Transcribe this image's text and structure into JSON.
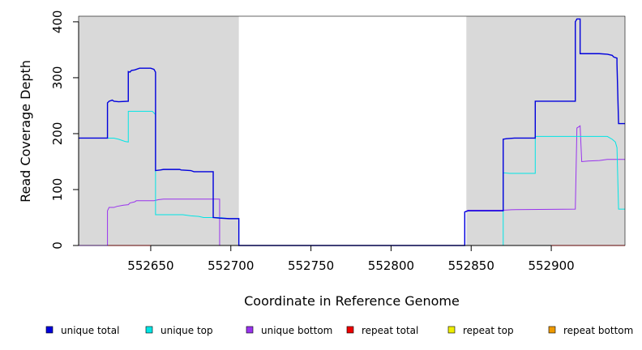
{
  "chart_data": {
    "type": "line",
    "title": "",
    "xlabel": "Coordinate in Reference Genome",
    "ylabel": "Read Coverage Depth",
    "xlim": [
      552605,
      552946
    ],
    "ylim": [
      0,
      410
    ],
    "x_ticks": [
      552650,
      552700,
      552750,
      552800,
      552850,
      552900
    ],
    "y_ticks": [
      0,
      100,
      200,
      300,
      400
    ],
    "grid": false,
    "legend_position": "bottom",
    "shaded_regions": [
      {
        "x_start": 552605,
        "x_end": 552705,
        "color": "#d9d9d9"
      },
      {
        "x_start": 552847,
        "x_end": 552946,
        "color": "#d9d9d9"
      }
    ],
    "series": [
      {
        "name": "unique total",
        "color": "#0000dd",
        "points": [
          [
            552605,
            192
          ],
          [
            552623,
            192
          ],
          [
            552623,
            255
          ],
          [
            552624,
            258
          ],
          [
            552626,
            260
          ],
          [
            552627,
            258
          ],
          [
            552630,
            257
          ],
          [
            552636,
            258
          ],
          [
            552636,
            311
          ],
          [
            552637,
            310
          ],
          [
            552638,
            313
          ],
          [
            552640,
            314
          ],
          [
            552643,
            317
          ],
          [
            552650,
            317
          ],
          [
            552652,
            315
          ],
          [
            552653,
            310
          ],
          [
            552653,
            134
          ],
          [
            552656,
            135
          ],
          [
            552658,
            136
          ],
          [
            552668,
            136
          ],
          [
            552669,
            135
          ],
          [
            552675,
            134
          ],
          [
            552677,
            132
          ],
          [
            552689,
            132
          ],
          [
            552689,
            50
          ],
          [
            552693,
            49
          ],
          [
            552699,
            48
          ],
          [
            552705,
            48
          ],
          [
            552705,
            0
          ],
          [
            552846,
            0
          ],
          [
            552846,
            60
          ],
          [
            552848,
            62
          ],
          [
            552870,
            62
          ],
          [
            552870,
            190
          ],
          [
            552872,
            191
          ],
          [
            552877,
            192
          ],
          [
            552890,
            192
          ],
          [
            552890,
            258
          ],
          [
            552915,
            258
          ],
          [
            552915,
            400
          ],
          [
            552916,
            405
          ],
          [
            552918,
            405
          ],
          [
            552918,
            343
          ],
          [
            552930,
            343
          ],
          [
            552935,
            342
          ],
          [
            552938,
            340
          ],
          [
            552939,
            337
          ],
          [
            552941,
            335
          ],
          [
            552941,
            325
          ],
          [
            552942,
            218
          ],
          [
            552946,
            218
          ]
        ]
      },
      {
        "name": "unique top",
        "color": "#00e5e5",
        "points": [
          [
            552605,
            192
          ],
          [
            552627,
            192
          ],
          [
            552630,
            190
          ],
          [
            552634,
            186
          ],
          [
            552636,
            185
          ],
          [
            552636,
            240
          ],
          [
            552651,
            240
          ],
          [
            552653,
            234
          ],
          [
            552653,
            55
          ],
          [
            552670,
            55
          ],
          [
            552675,
            53
          ],
          [
            552680,
            52
          ],
          [
            552683,
            50
          ],
          [
            552693,
            50
          ],
          [
            552699,
            48
          ],
          [
            552705,
            48
          ],
          [
            552705,
            0
          ],
          [
            552870,
            0
          ],
          [
            552870,
            130
          ],
          [
            552874,
            129
          ],
          [
            552883,
            129
          ],
          [
            552890,
            129
          ],
          [
            552890,
            195
          ],
          [
            552935,
            195
          ],
          [
            552938,
            190
          ],
          [
            552940,
            185
          ],
          [
            552941,
            175
          ],
          [
            552942,
            65
          ],
          [
            552946,
            65
          ]
        ]
      },
      {
        "name": "unique bottom",
        "color": "#9933ee",
        "points": [
          [
            552605,
            0
          ],
          [
            552623,
            0
          ],
          [
            552623,
            62
          ],
          [
            552624,
            68
          ],
          [
            552627,
            68
          ],
          [
            552629,
            70
          ],
          [
            552633,
            72
          ],
          [
            552636,
            73
          ],
          [
            552637,
            76
          ],
          [
            552640,
            78
          ],
          [
            552641,
            80
          ],
          [
            552652,
            80
          ],
          [
            552655,
            82
          ],
          [
            552658,
            83
          ],
          [
            552693,
            83
          ],
          [
            552693,
            0
          ],
          [
            552846,
            0
          ],
          [
            552846,
            60
          ],
          [
            552848,
            63
          ],
          [
            552870,
            63
          ],
          [
            552875,
            64
          ],
          [
            552915,
            65
          ],
          [
            552916,
            210
          ],
          [
            552918,
            214
          ],
          [
            552919,
            150
          ],
          [
            552923,
            151
          ],
          [
            552930,
            152
          ],
          [
            552935,
            154
          ],
          [
            552946,
            154
          ]
        ]
      },
      {
        "name": "repeat total",
        "color": "#ee0000",
        "points": [
          [
            552605,
            0
          ],
          [
            552946,
            0
          ]
        ]
      },
      {
        "name": "repeat top",
        "color": "#eeee00",
        "points": [
          [
            552605,
            0
          ],
          [
            552946,
            0
          ]
        ]
      },
      {
        "name": "repeat bottom",
        "color": "#ee9900",
        "points": [
          [
            552605,
            0
          ],
          [
            552946,
            0
          ]
        ]
      }
    ]
  }
}
